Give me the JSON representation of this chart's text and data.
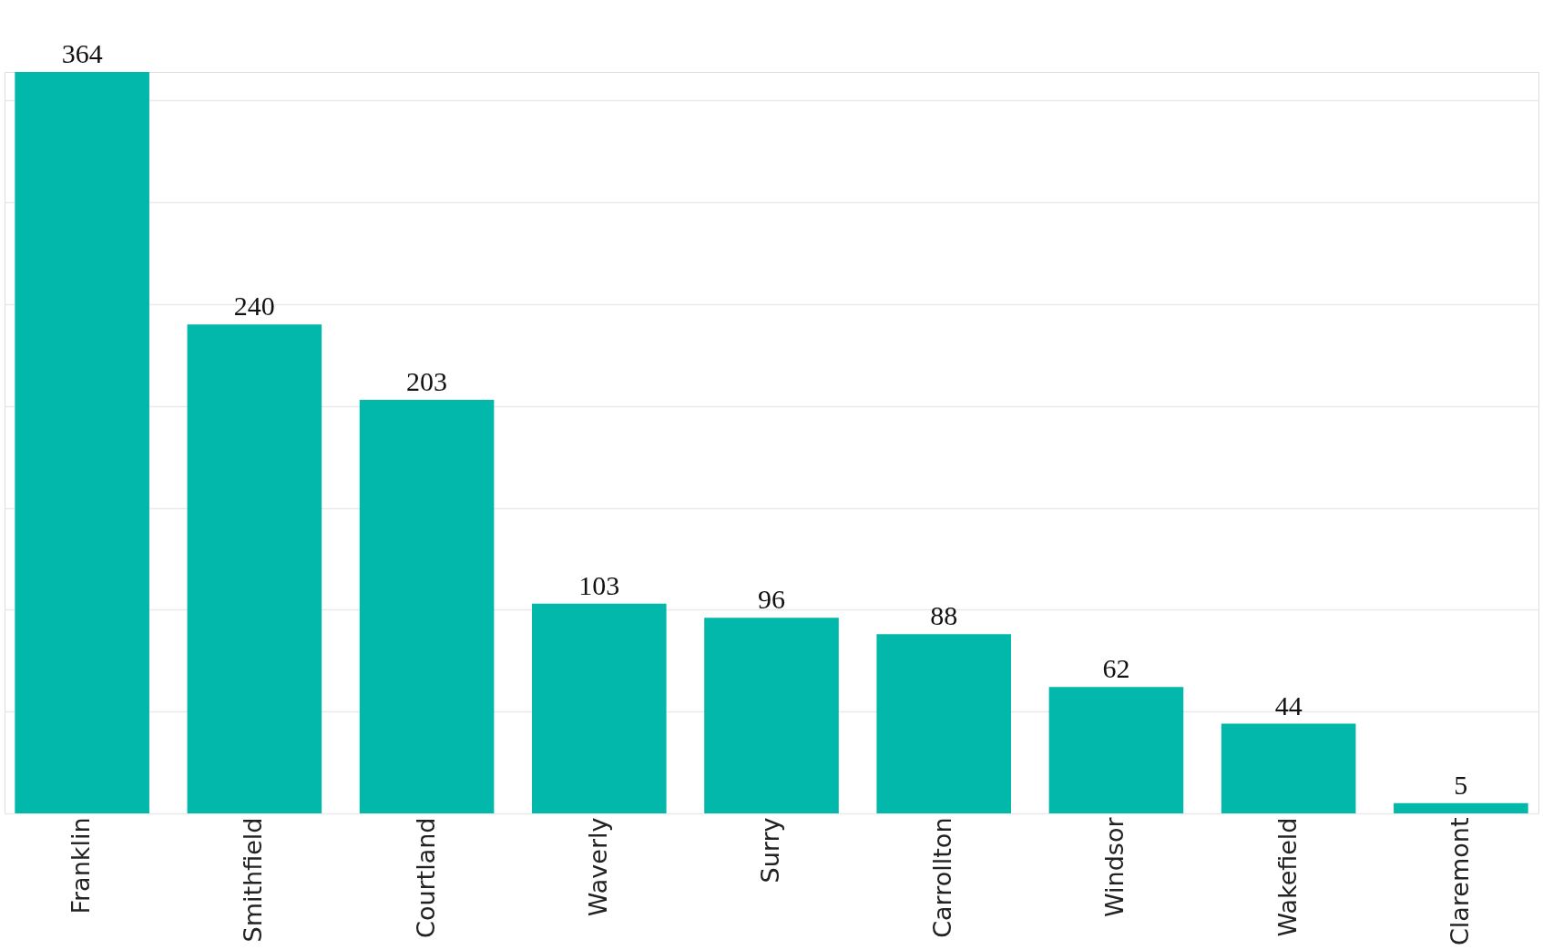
{
  "chart_data": {
    "type": "bar",
    "categories": [
      "Franklin",
      "Smithfield",
      "Courtland",
      "Waverly",
      "Surry",
      "Carrollton",
      "Windsor",
      "Wakefield",
      "Claremont"
    ],
    "values": [
      364,
      240,
      203,
      103,
      96,
      88,
      62,
      44,
      5
    ],
    "color": "#01b8aa",
    "ylim": [
      0,
      364
    ],
    "yticks": [
      {
        "value": 0,
        "label": null
      },
      {
        "value": 50,
        "label": null
      },
      {
        "value": 100,
        "label": null
      },
      {
        "value": 150,
        "label": null
      },
      {
        "value": 200,
        "label": null
      },
      {
        "value": 250,
        "label": null
      },
      {
        "value": 300,
        "label": null
      },
      {
        "value": 350,
        "label": null
      }
    ],
    "grid": "y",
    "tick_labels": "x",
    "data_labels": true
  }
}
